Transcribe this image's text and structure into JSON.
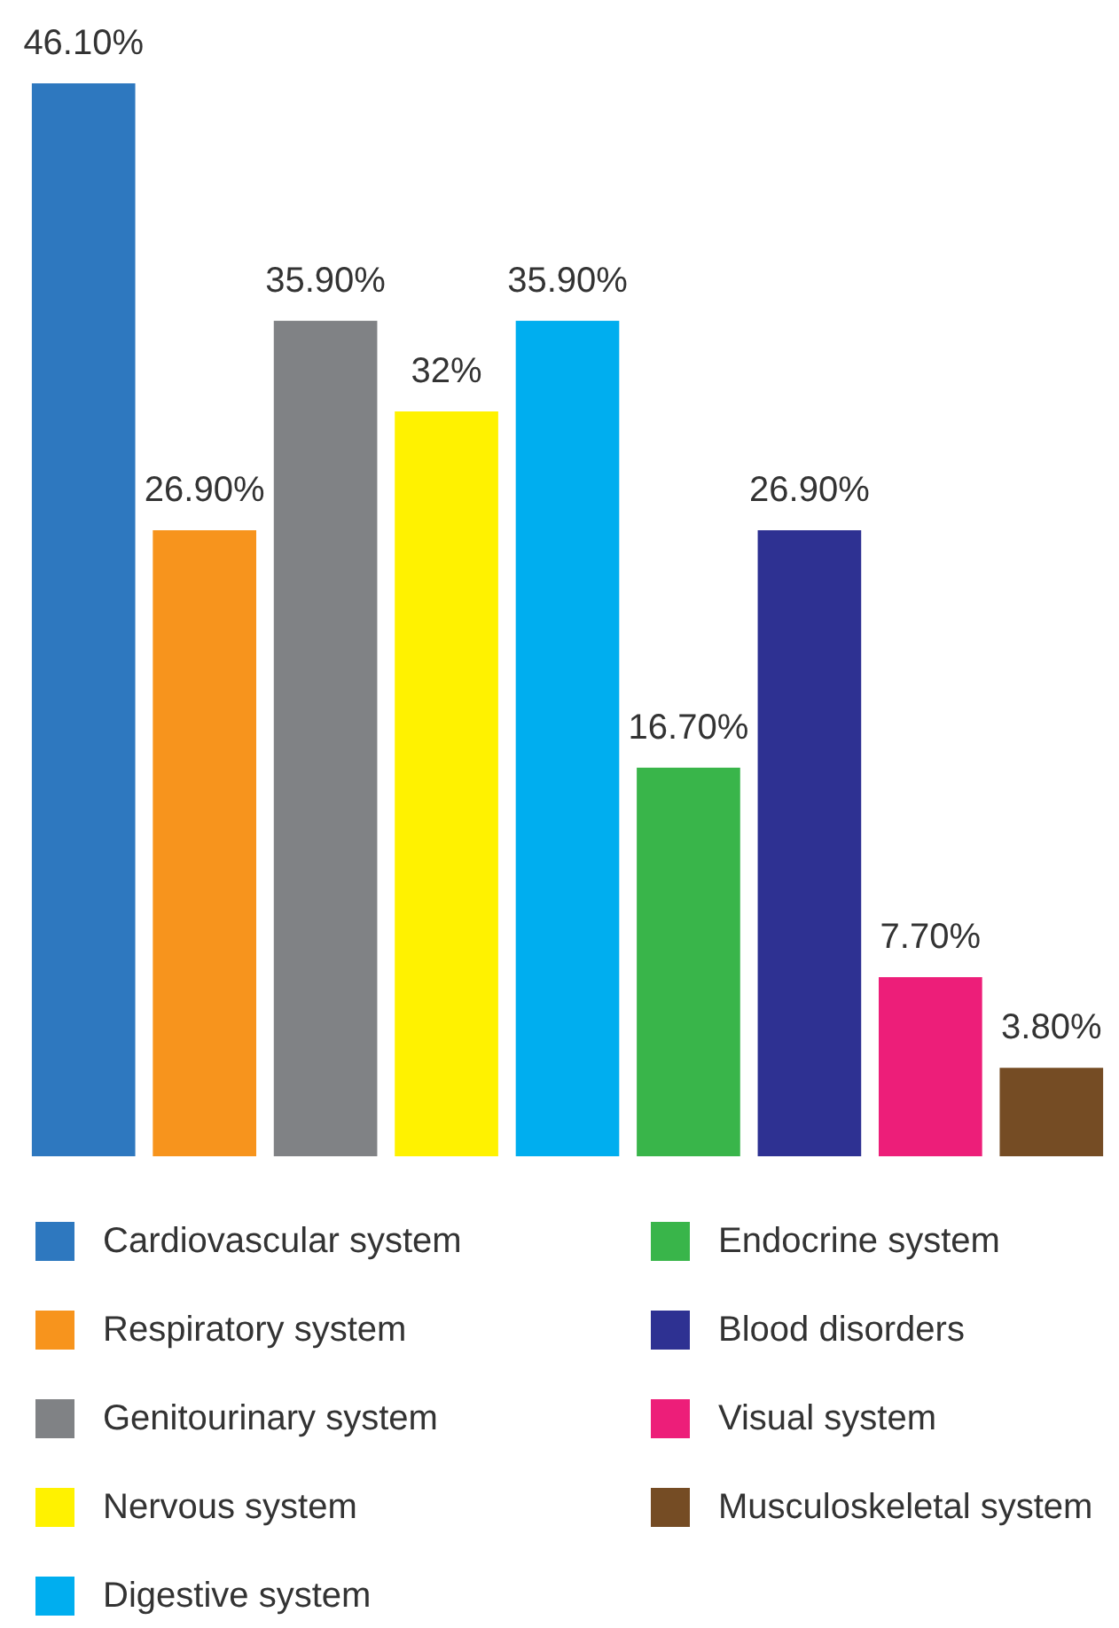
{
  "chart_data": {
    "type": "bar",
    "categories": [
      null
    ],
    "ylim": [
      0,
      46.1
    ],
    "tick_labels": false,
    "legend": "bottom",
    "series": [
      {
        "name": "Cardiovascular system",
        "color": "#2e78bf",
        "values": [
          46.1
        ],
        "value_labels": [
          "46.10%"
        ]
      },
      {
        "name": "Respiratory system",
        "color": "#f7941d",
        "values": [
          26.9
        ],
        "value_labels": [
          "26.90%"
        ]
      },
      {
        "name": "Genitourinary system",
        "color": "#808285",
        "values": [
          35.9
        ],
        "value_labels": [
          "35.90%"
        ]
      },
      {
        "name": "Nervous system",
        "color": "#fff200",
        "values": [
          32
        ],
        "value_labels": [
          "32%"
        ]
      },
      {
        "name": "Digestive system",
        "color": "#00aeef",
        "values": [
          35.9
        ],
        "value_labels": [
          "35.90%"
        ]
      },
      {
        "name": "Endocrine system",
        "color": "#39b54a",
        "values": [
          16.7
        ],
        "value_labels": [
          "16.70%"
        ]
      },
      {
        "name": "Blood disorders",
        "color": "#2e3192",
        "values": [
          26.9
        ],
        "value_labels": [
          "26.90%"
        ]
      },
      {
        "name": "Visual system",
        "color": "#ed1e79",
        "values": [
          7.7
        ],
        "value_labels": [
          "7.70%"
        ]
      },
      {
        "name": "Musculoskeletal system",
        "color": "#754c24",
        "values": [
          3.8
        ],
        "value_labels": [
          "3.80%"
        ]
      }
    ]
  }
}
